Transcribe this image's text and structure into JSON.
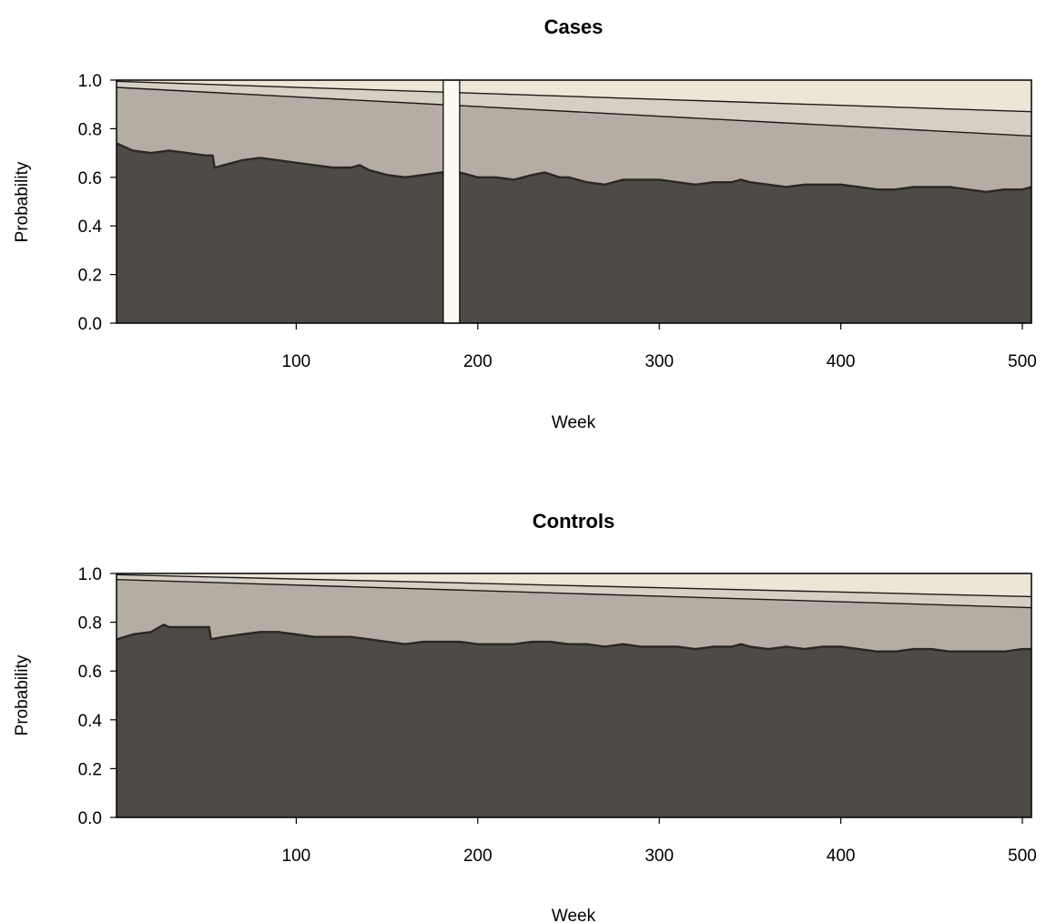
{
  "chart_data": [
    {
      "type": "area",
      "stacked": true,
      "title": "Cases",
      "xlabel": "Week",
      "ylabel": "Probability",
      "xlim": [
        1,
        505
      ],
      "ylim": [
        0,
        1
      ],
      "x_ticks": [
        100,
        200,
        300,
        400,
        500
      ],
      "y_ticks": [
        "0.0",
        "0.2",
        "0.4",
        "0.6",
        "0.8",
        "1.0"
      ],
      "gap": {
        "x_range": [
          181,
          190
        ],
        "color": "#fdfaf1"
      },
      "layer_colors": [
        "#4e4a45",
        "#b5ada3",
        "#d6cfc3",
        "#ede5d6"
      ],
      "boundaries": [
        {
          "x": [
            1,
            10,
            20,
            30,
            40,
            50,
            54,
            55,
            60,
            70,
            80,
            90,
            100,
            110,
            120,
            130,
            135,
            140,
            150,
            160,
            170,
            180,
            190,
            200,
            210,
            220,
            230,
            237,
            245,
            250,
            260,
            270,
            280,
            290,
            300,
            310,
            320,
            330,
            340,
            345,
            350,
            360,
            370,
            380,
            390,
            400,
            410,
            420,
            430,
            440,
            450,
            460,
            470,
            480,
            490,
            500,
            505
          ],
          "y": [
            0.74,
            0.71,
            0.7,
            0.71,
            0.7,
            0.69,
            0.69,
            0.64,
            0.65,
            0.67,
            0.68,
            0.67,
            0.66,
            0.65,
            0.64,
            0.64,
            0.65,
            0.63,
            0.61,
            0.6,
            0.61,
            0.62,
            0.62,
            0.6,
            0.6,
            0.59,
            0.61,
            0.62,
            0.6,
            0.6,
            0.58,
            0.57,
            0.59,
            0.59,
            0.59,
            0.58,
            0.57,
            0.58,
            0.58,
            0.59,
            0.58,
            0.57,
            0.56,
            0.57,
            0.57,
            0.57,
            0.56,
            0.55,
            0.55,
            0.56,
            0.56,
            0.56,
            0.55,
            0.54,
            0.55,
            0.55,
            0.56
          ]
        },
        {
          "x": [
            1,
            505
          ],
          "y": [
            0.97,
            0.77
          ]
        },
        {
          "x": [
            1,
            505
          ],
          "y": [
            0.995,
            0.87
          ]
        }
      ]
    },
    {
      "type": "area",
      "stacked": true,
      "title": "Controls",
      "xlabel": "Week",
      "ylabel": "Probability",
      "xlim": [
        1,
        505
      ],
      "ylim": [
        0,
        1
      ],
      "x_ticks": [
        100,
        200,
        300,
        400,
        500
      ],
      "y_ticks": [
        "0.0",
        "0.2",
        "0.4",
        "0.6",
        "0.8",
        "1.0"
      ],
      "layer_colors": [
        "#4e4a45",
        "#b5ada3",
        "#d6cfc3",
        "#ede5d6"
      ],
      "boundaries": [
        {
          "x": [
            1,
            10,
            20,
            27,
            30,
            40,
            52,
            53,
            60,
            70,
            80,
            90,
            100,
            110,
            120,
            130,
            140,
            150,
            160,
            170,
            180,
            190,
            200,
            210,
            220,
            230,
            240,
            250,
            260,
            270,
            280,
            290,
            300,
            310,
            320,
            330,
            340,
            345,
            350,
            360,
            370,
            380,
            390,
            400,
            410,
            420,
            430,
            440,
            450,
            460,
            470,
            480,
            490,
            500,
            505
          ],
          "y": [
            0.73,
            0.75,
            0.76,
            0.79,
            0.78,
            0.78,
            0.78,
            0.73,
            0.74,
            0.75,
            0.76,
            0.76,
            0.75,
            0.74,
            0.74,
            0.74,
            0.73,
            0.72,
            0.71,
            0.72,
            0.72,
            0.72,
            0.71,
            0.71,
            0.71,
            0.72,
            0.72,
            0.71,
            0.71,
            0.7,
            0.71,
            0.7,
            0.7,
            0.7,
            0.69,
            0.7,
            0.7,
            0.71,
            0.7,
            0.69,
            0.7,
            0.69,
            0.7,
            0.7,
            0.69,
            0.68,
            0.68,
            0.69,
            0.69,
            0.68,
            0.68,
            0.68,
            0.68,
            0.69,
            0.69
          ]
        },
        {
          "x": [
            1,
            505
          ],
          "y": [
            0.975,
            0.86
          ]
        },
        {
          "x": [
            1,
            505
          ],
          "y": [
            0.995,
            0.905
          ]
        }
      ]
    }
  ]
}
